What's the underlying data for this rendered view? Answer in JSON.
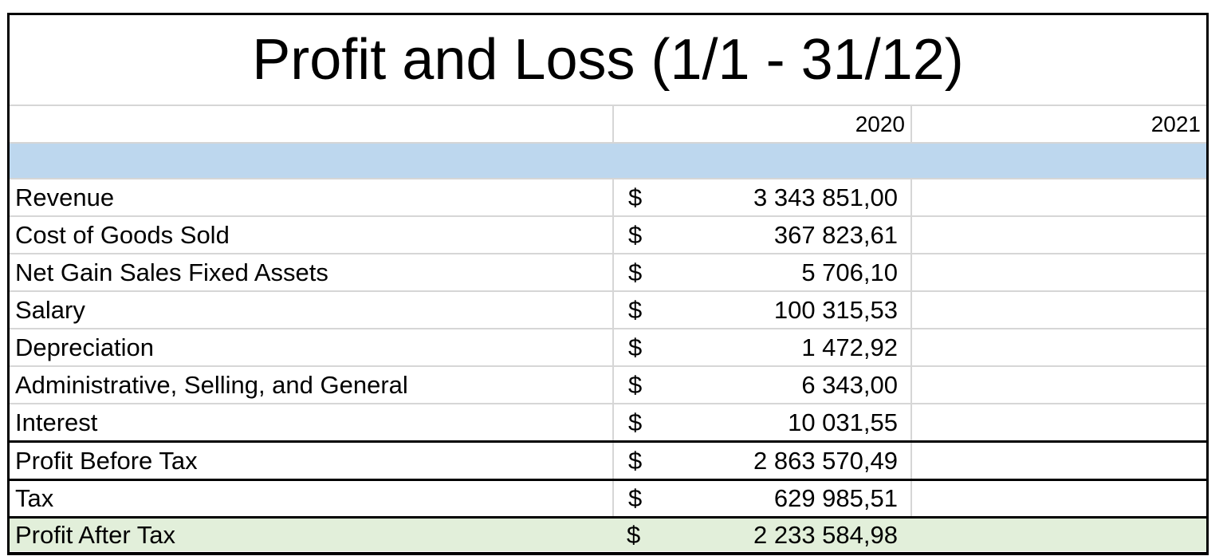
{
  "title": "Profit and Loss (1/1 - 31/12)",
  "header": {
    "label_column": "",
    "years": [
      "2020",
      "2021"
    ]
  },
  "currency_symbol": "$",
  "rows": [
    {
      "label": "Revenue",
      "y2020": "3 343 851,00",
      "y2021": ""
    },
    {
      "label": "Cost of Goods Sold",
      "y2020": "367 823,61",
      "y2021": ""
    },
    {
      "label": "Net Gain Sales Fixed Assets",
      "y2020": "5 706,10",
      "y2021": ""
    },
    {
      "label": "Salary",
      "y2020": "100 315,53",
      "y2021": ""
    },
    {
      "label": "Depreciation",
      "y2020": "1 472,92",
      "y2021": ""
    },
    {
      "label": "Administrative, Selling, and General",
      "y2020": "6 343,00",
      "y2021": ""
    },
    {
      "label": "Interest",
      "y2020": "10 031,55",
      "y2021": ""
    },
    {
      "label": "Profit Before Tax",
      "y2020": "2 863 570,49",
      "y2021": ""
    },
    {
      "label": "Tax",
      "y2020": "629 985,51",
      "y2021": ""
    },
    {
      "label": "Profit After Tax",
      "y2020": "2 233 584,98",
      "y2021": ""
    }
  ],
  "colors": {
    "highlight_row_blue": "#bdd7ee",
    "total_row_green": "#e2efda",
    "gridline": "#d6d6d6",
    "outer_border": "#000000"
  }
}
